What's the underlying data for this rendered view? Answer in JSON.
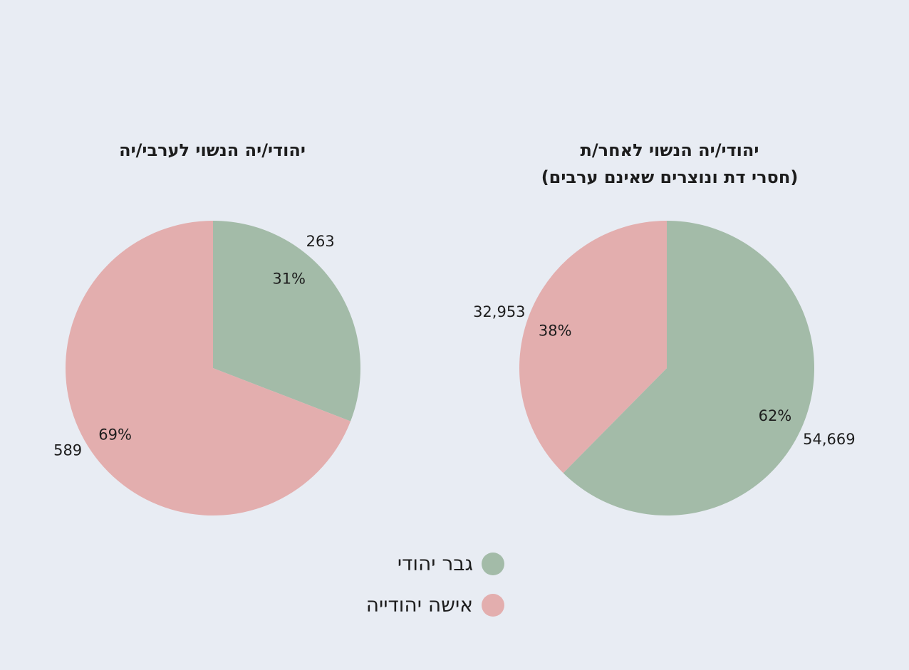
{
  "colors": {
    "jewish_man": "#a3bba8",
    "jewish_woman": "#e3aeae",
    "background": "#e8ecf3",
    "text": "#1d1d1d"
  },
  "legend": [
    {
      "label": "גבר יהודי",
      "color": "#a3bba8"
    },
    {
      "label": "אישה יהודייה",
      "color": "#e3aeae"
    }
  ],
  "chart_data": [
    {
      "type": "pie",
      "title": "יהודי/יה הנשוי לערבי/יה",
      "slices": [
        {
          "series": "גבר יהודי",
          "value": 263,
          "value_label": "263",
          "percent_label": "31%",
          "color": "#a3bba8"
        },
        {
          "series": "אישה יהודייה",
          "value": 589,
          "value_label": "589",
          "percent_label": "69%",
          "color": "#e3aeae"
        }
      ]
    },
    {
      "type": "pie",
      "title": [
        "יהודי/יה הנשוי לאחר/ת",
        "(חסרי דת ונוצרים שאינם ערבים)"
      ],
      "slices": [
        {
          "series": "גבר יהודי",
          "value": 54669,
          "value_label": "54,669",
          "percent_label": "62%",
          "color": "#a3bba8"
        },
        {
          "series": "אישה יהודייה",
          "value": 32953,
          "value_label": "32,953",
          "percent_label": "38%",
          "color": "#e3aeae"
        }
      ]
    }
  ]
}
